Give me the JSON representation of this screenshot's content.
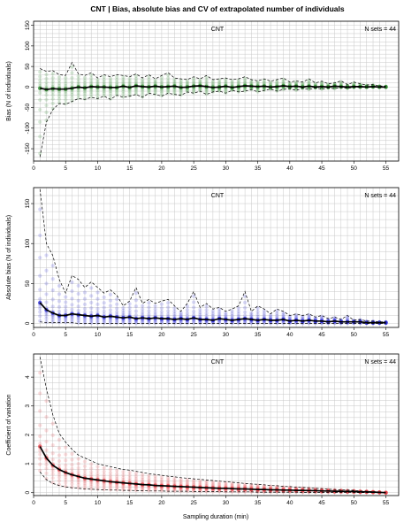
{
  "figure": {
    "title": "CNT | Bias, absolute bias and CV of extrapolated number of individuals",
    "xlabel": "Sampling duration (min)"
  },
  "chart_data": [
    {
      "type": "line",
      "panel_label": "CNT",
      "n_sets_label": "N sets = 44",
      "ylabel": "Bias (N of individuals)",
      "xlim": [
        0,
        57
      ],
      "ylim": [
        -180,
        160
      ],
      "xticks": [
        0,
        5,
        10,
        15,
        20,
        25,
        30,
        35,
        40,
        45,
        50,
        55
      ],
      "yticks": [
        -150,
        -100,
        -50,
        0,
        50,
        100,
        150
      ],
      "grid": true,
      "point_color": "#2e8b2e",
      "x": [
        1,
        2,
        3,
        4,
        5,
        6,
        7,
        8,
        9,
        10,
        11,
        12,
        13,
        14,
        15,
        16,
        17,
        18,
        19,
        20,
        21,
        22,
        23,
        24,
        25,
        26,
        27,
        28,
        29,
        30,
        31,
        32,
        33,
        34,
        35,
        36,
        37,
        38,
        39,
        40,
        41,
        42,
        43,
        44,
        45,
        46,
        47,
        48,
        49,
        50,
        51,
        52,
        53,
        54,
        55
      ],
      "series": [
        {
          "role": "mean",
          "values": [
            -3,
            -6,
            -4,
            -5,
            -5,
            -3,
            0,
            -2,
            1,
            0,
            0,
            -1,
            -1,
            2,
            -1,
            3,
            1,
            0,
            2,
            0,
            1,
            2,
            -1,
            0,
            2,
            3,
            1,
            -1,
            0,
            2,
            -1,
            1,
            3,
            2,
            1,
            2,
            0,
            1,
            3,
            1,
            2,
            0,
            2,
            0,
            1,
            0,
            2,
            1,
            0,
            1,
            1,
            0,
            1,
            0,
            0
          ]
        },
        {
          "role": "upper",
          "values": [
            45,
            38,
            40,
            30,
            28,
            60,
            32,
            28,
            35,
            22,
            30,
            25,
            30,
            28,
            25,
            32,
            22,
            30,
            20,
            28,
            35,
            22,
            20,
            18,
            25,
            20,
            28,
            18,
            20,
            22,
            18,
            20,
            25,
            18,
            15,
            20,
            14,
            18,
            22,
            12,
            15,
            12,
            20,
            10,
            14,
            8,
            10,
            15,
            6,
            12,
            8,
            5,
            6,
            3,
            2
          ]
        },
        {
          "role": "lower",
          "values": [
            -170,
            -85,
            -55,
            -40,
            -42,
            -35,
            -28,
            -30,
            -25,
            -28,
            -22,
            -30,
            -20,
            -25,
            -22,
            -18,
            -25,
            -15,
            -18,
            -22,
            -15,
            -18,
            -20,
            -12,
            -15,
            -10,
            -18,
            -12,
            -10,
            -15,
            -8,
            -12,
            -10,
            -6,
            -12,
            -8,
            -5,
            -10,
            -6,
            -4,
            -8,
            -3,
            -6,
            -2,
            -5,
            -2,
            -4,
            -1,
            -3,
            -1,
            -1,
            0,
            0,
            0,
            0
          ]
        }
      ]
    },
    {
      "type": "line",
      "panel_label": "CNT",
      "n_sets_label": "N sets = 44",
      "ylabel": "Absolute bias (N of individuals)",
      "xlim": [
        0,
        57
      ],
      "ylim": [
        -5,
        170
      ],
      "xticks": [
        0,
        5,
        10,
        15,
        20,
        25,
        30,
        35,
        40,
        45,
        50,
        55
      ],
      "yticks": [
        0,
        50,
        100,
        150
      ],
      "grid": true,
      "point_color": "#2a2ad6",
      "x": [
        1,
        2,
        3,
        4,
        5,
        6,
        7,
        8,
        9,
        10,
        11,
        12,
        13,
        14,
        15,
        16,
        17,
        18,
        19,
        20,
        21,
        22,
        23,
        24,
        25,
        26,
        27,
        28,
        29,
        30,
        31,
        32,
        33,
        34,
        35,
        36,
        37,
        38,
        39,
        40,
        41,
        42,
        43,
        44,
        45,
        46,
        47,
        48,
        49,
        50,
        51,
        52,
        53,
        54,
        55
      ],
      "series": [
        {
          "role": "mean",
          "values": [
            26,
            17,
            13,
            10,
            10,
            12,
            11,
            10,
            9,
            10,
            8,
            9,
            8,
            7,
            8,
            6,
            7,
            6,
            7,
            6,
            6,
            5,
            6,
            5,
            7,
            5,
            5,
            4,
            6,
            5,
            4,
            5,
            6,
            5,
            4,
            5,
            4,
            4,
            5,
            3,
            4,
            3,
            4,
            3,
            3,
            2,
            3,
            2,
            2,
            2,
            2,
            1,
            1,
            1,
            1
          ]
        },
        {
          "role": "upper",
          "values": [
            168,
            100,
            85,
            55,
            38,
            60,
            55,
            45,
            52,
            45,
            38,
            42,
            35,
            22,
            28,
            45,
            25,
            30,
            25,
            28,
            30,
            22,
            15,
            25,
            40,
            20,
            25,
            18,
            20,
            15,
            18,
            22,
            40,
            15,
            22,
            18,
            12,
            18,
            15,
            10,
            12,
            10,
            12,
            8,
            10,
            6,
            8,
            5,
            10,
            4,
            5,
            3,
            3,
            2,
            2
          ]
        },
        {
          "role": "lower",
          "values": [
            2,
            1,
            1,
            1,
            1,
            1,
            0,
            0,
            0,
            0,
            0,
            0,
            0,
            0,
            0,
            0,
            0,
            0,
            0,
            0,
            0,
            0,
            0,
            0,
            0,
            0,
            0,
            0,
            0,
            0,
            0,
            0,
            0,
            0,
            0,
            0,
            0,
            0,
            0,
            0,
            0,
            0,
            0,
            0,
            0,
            0,
            0,
            0,
            0,
            0,
            0,
            0,
            0,
            0,
            0
          ]
        }
      ]
    },
    {
      "type": "line",
      "panel_label": "CNT",
      "n_sets_label": "N sets = 44",
      "ylabel": "Coefficient of variation",
      "xlim": [
        0,
        57
      ],
      "ylim": [
        -0.1,
        4.8
      ],
      "xticks": [
        0,
        5,
        10,
        15,
        20,
        25,
        30,
        35,
        40,
        45,
        50,
        55
      ],
      "yticks": [
        0,
        1,
        2,
        3,
        4
      ],
      "grid": true,
      "point_color": "#e8404a",
      "x": [
        1,
        2,
        3,
        4,
        5,
        6,
        7,
        8,
        9,
        10,
        11,
        12,
        13,
        14,
        15,
        16,
        17,
        18,
        19,
        20,
        21,
        22,
        23,
        24,
        25,
        26,
        27,
        28,
        29,
        30,
        31,
        32,
        33,
        34,
        35,
        36,
        37,
        38,
        39,
        40,
        41,
        42,
        43,
        44,
        45,
        46,
        47,
        48,
        49,
        50,
        51,
        52,
        53,
        54,
        55
      ],
      "series": [
        {
          "role": "mean",
          "values": [
            1.6,
            1.2,
            0.95,
            0.8,
            0.7,
            0.62,
            0.56,
            0.5,
            0.47,
            0.44,
            0.41,
            0.38,
            0.36,
            0.34,
            0.32,
            0.3,
            0.28,
            0.27,
            0.25,
            0.24,
            0.23,
            0.22,
            0.21,
            0.2,
            0.19,
            0.18,
            0.17,
            0.16,
            0.15,
            0.15,
            0.14,
            0.13,
            0.13,
            0.12,
            0.11,
            0.11,
            0.1,
            0.1,
            0.09,
            0.09,
            0.08,
            0.08,
            0.07,
            0.07,
            0.06,
            0.06,
            0.05,
            0.05,
            0.04,
            0.04,
            0.03,
            0.03,
            0.02,
            0.01,
            0.0
          ]
        },
        {
          "role": "upper",
          "values": [
            4.7,
            3.6,
            2.7,
            2.05,
            1.75,
            1.5,
            1.3,
            1.2,
            1.1,
            1.0,
            0.95,
            0.9,
            0.85,
            0.8,
            0.78,
            0.74,
            0.7,
            0.66,
            0.63,
            0.6,
            0.57,
            0.55,
            0.52,
            0.5,
            0.48,
            0.46,
            0.44,
            0.42,
            0.4,
            0.38,
            0.36,
            0.34,
            0.32,
            0.3,
            0.29,
            0.27,
            0.25,
            0.24,
            0.22,
            0.21,
            0.19,
            0.18,
            0.17,
            0.15,
            0.14,
            0.12,
            0.11,
            0.1,
            0.09,
            0.08,
            0.06,
            0.05,
            0.04,
            0.02,
            0.0
          ]
        },
        {
          "role": "lower",
          "values": [
            0.72,
            0.45,
            0.32,
            0.25,
            0.2,
            0.17,
            0.15,
            0.13,
            0.12,
            0.11,
            0.1,
            0.09,
            0.09,
            0.08,
            0.08,
            0.07,
            0.07,
            0.06,
            0.06,
            0.06,
            0.05,
            0.05,
            0.05,
            0.05,
            0.04,
            0.04,
            0.04,
            0.04,
            0.04,
            0.03,
            0.03,
            0.03,
            0.03,
            0.03,
            0.02,
            0.02,
            0.02,
            0.02,
            0.02,
            0.02,
            0.02,
            0.01,
            0.01,
            0.01,
            0.01,
            0.01,
            0.01,
            0.01,
            0.01,
            0.0,
            0.0,
            0.0,
            0.0,
            0.0,
            0.0
          ]
        }
      ]
    }
  ]
}
